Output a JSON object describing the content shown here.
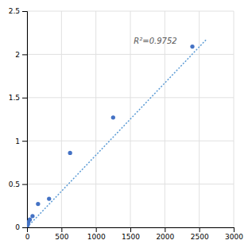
{
  "chart_data": {
    "type": "scatter",
    "series": [
      {
        "type": "scatter",
        "color": "#4472C4",
        "marker": "circle",
        "x": [
          0,
          10,
          20,
          40,
          80,
          160,
          320,
          625,
          1250,
          2400
        ],
        "values": [
          0.0,
          0.03,
          0.06,
          0.09,
          0.13,
          0.27,
          0.33,
          0.86,
          1.27,
          2.09
        ]
      },
      {
        "type": "line",
        "color": "#5B9BD5",
        "line_style": "dotted",
        "x": [
          0,
          2600
        ],
        "values": [
          0.0,
          2.17
        ]
      }
    ],
    "annotations": [
      {
        "text": "R²=0.9752",
        "x": 1550,
        "y": 2.12
      }
    ],
    "xlim": [
      0,
      3000
    ],
    "ylim": [
      0,
      2.5
    ],
    "xticks": [
      0,
      500,
      1000,
      1500,
      2000,
      2500,
      3000
    ],
    "yticks": [
      0,
      0.5,
      1,
      1.5,
      2,
      2.5
    ],
    "grid": true
  }
}
